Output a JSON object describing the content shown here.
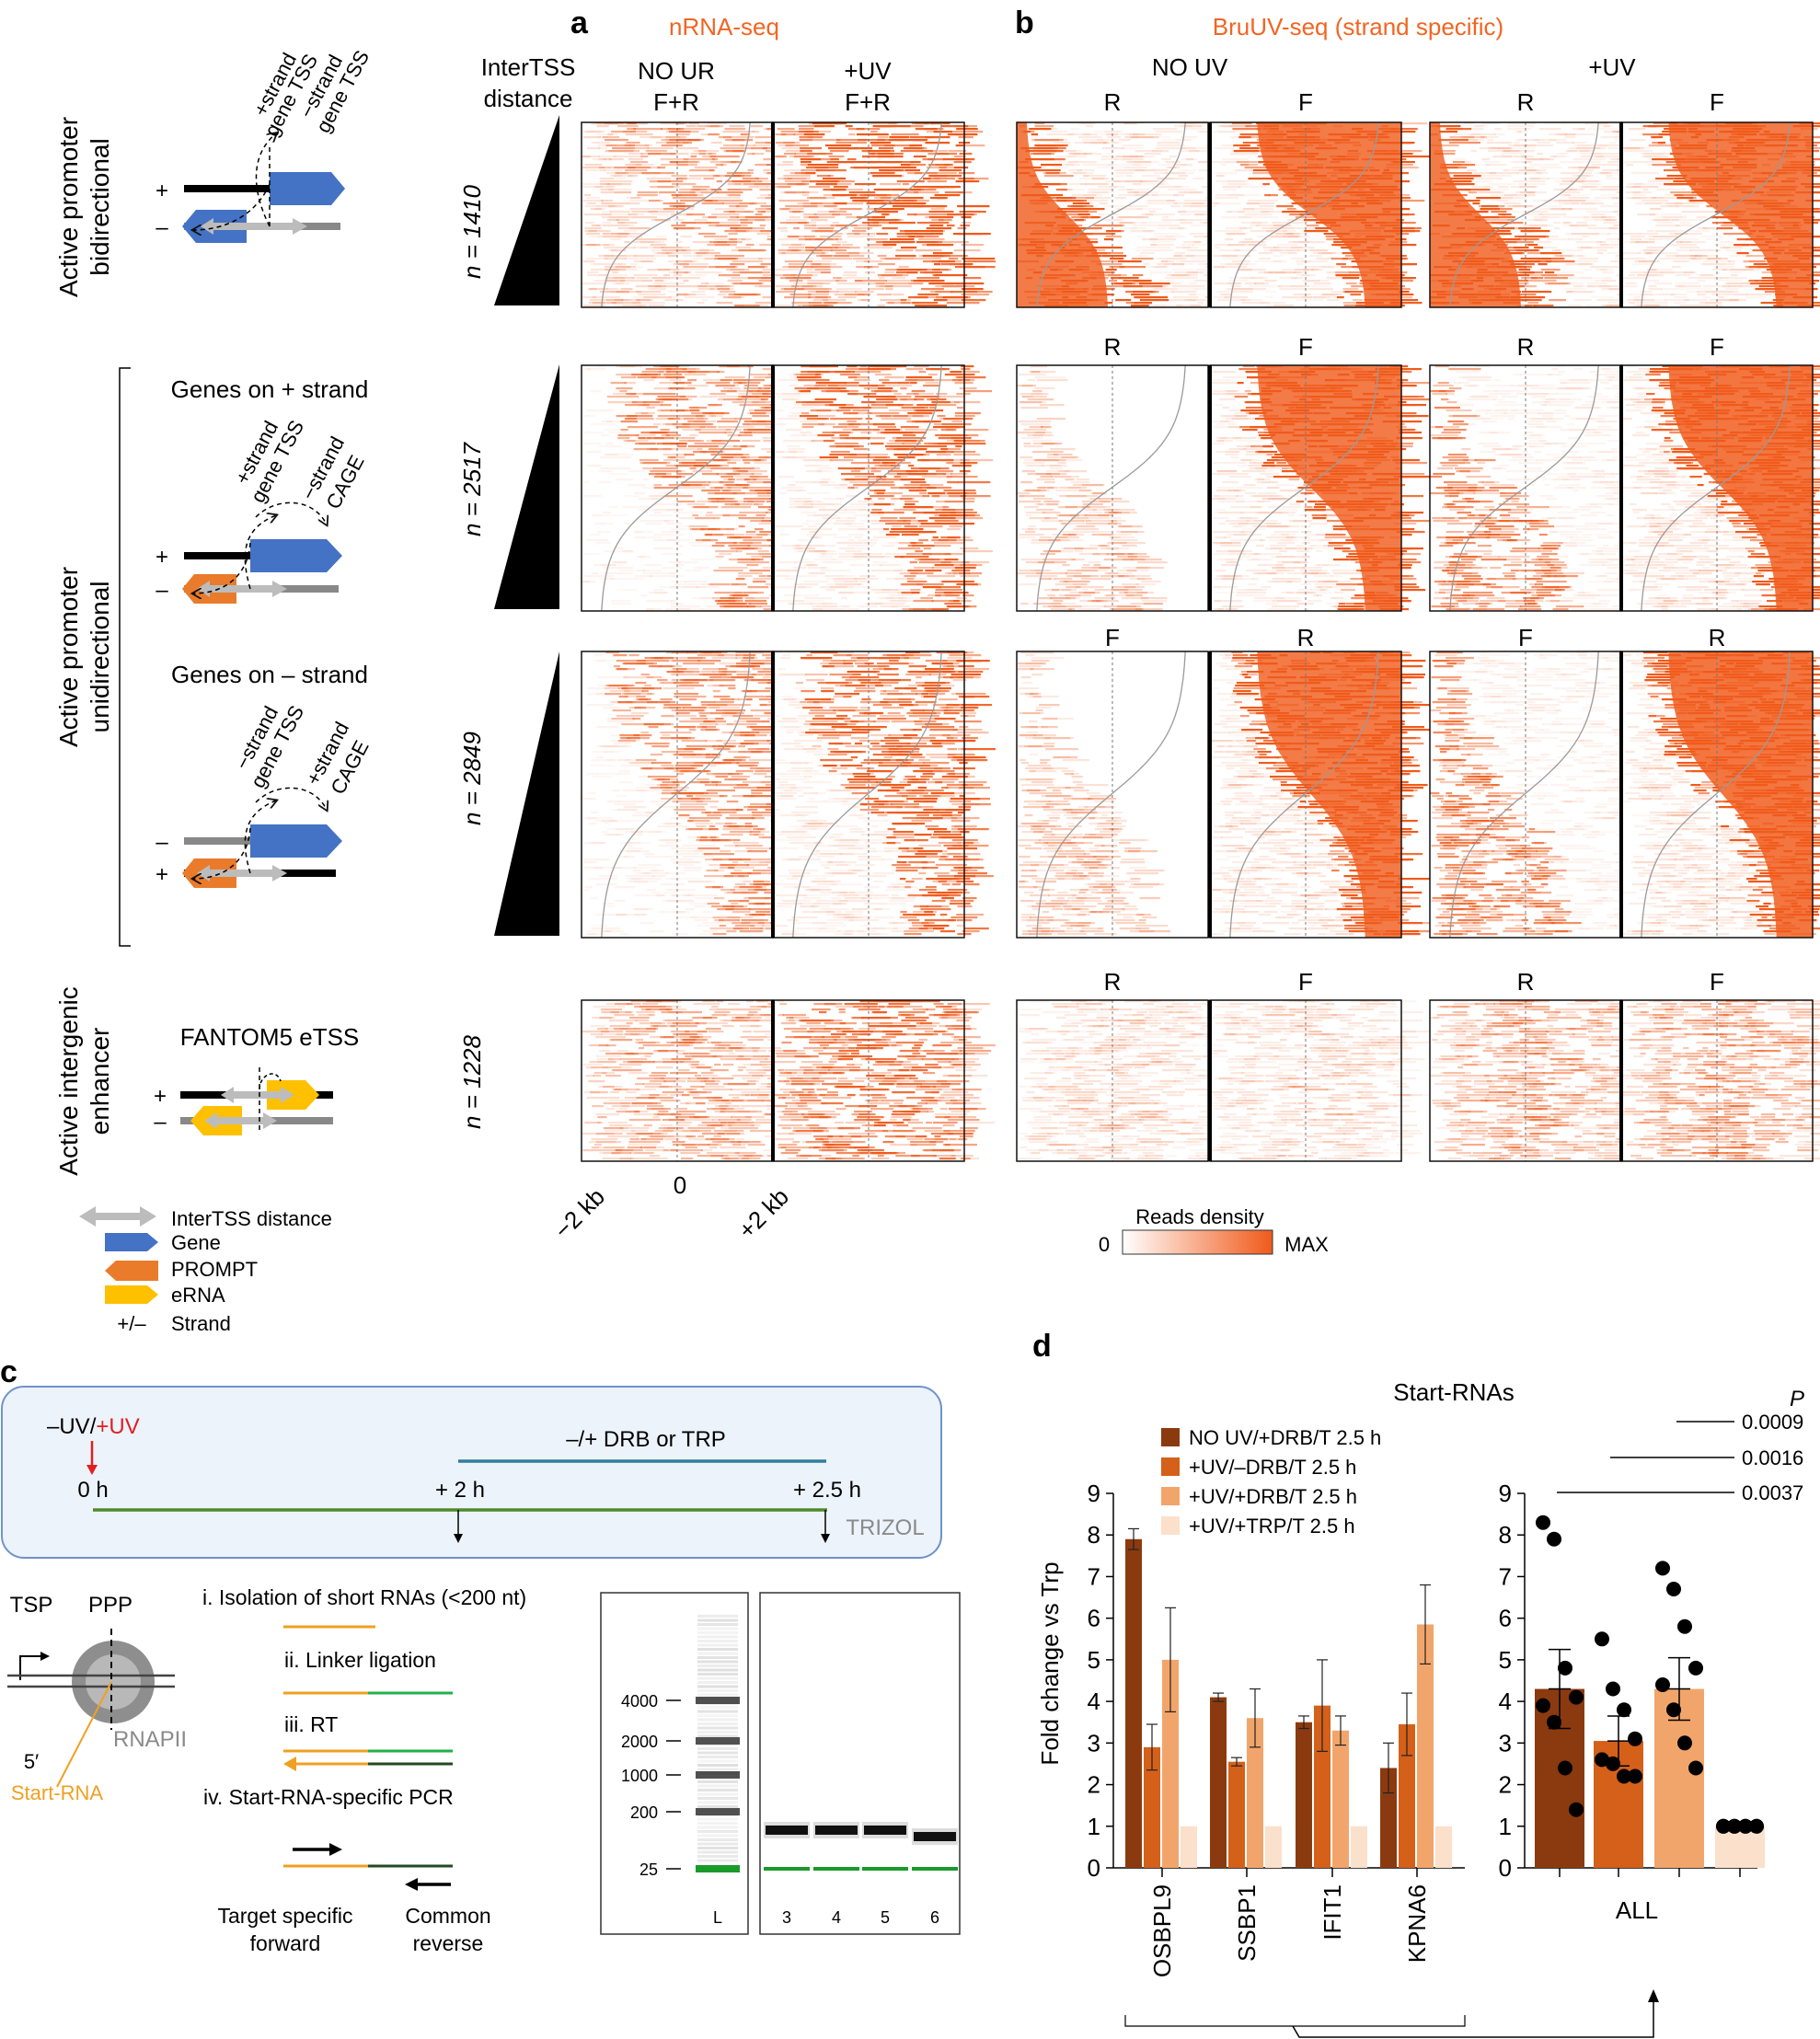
{
  "colors": {
    "accent": "#f26522",
    "heat_max": "#f05a1a",
    "gene": "#4472c4",
    "prompt": "#e97b2b",
    "erna": "#ffc000",
    "bar1": "#8b3a0f",
    "bar2": "#d4601a",
    "bar3": "#f2a56b",
    "bar4": "#fbe0cc",
    "timeline_bg": "#edf3fb",
    "timeline_border": "#6f93c9",
    "drb_line": "#2f7f9b",
    "time_line": "#4f8a2b",
    "start_rna": "#f0a020",
    "linker": "#22b04b",
    "gel_green": "#1a9a2a"
  },
  "panel_a": {
    "letter": "a",
    "title": "nRNA-seq",
    "intertss_label_1": "InterTSS",
    "intertss_label_2": "distance",
    "col1_l1": "NO UR",
    "col1_l2": "F+R",
    "col2_l1": "+UV",
    "col2_l2": "F+R",
    "x_ticks": [
      "−2 kb",
      "0",
      "+2 kb"
    ]
  },
  "panel_b": {
    "letter": "b",
    "title": "BruUV-seq (strand specific)",
    "group1": "NO UV",
    "group2": "+UV",
    "row_labels": [
      [
        "R",
        "F",
        "R",
        "F"
      ],
      [
        "R",
        "F",
        "R",
        "F"
      ],
      [
        "F",
        "R",
        "F",
        "R"
      ],
      [
        "R",
        "F",
        "R",
        "F"
      ]
    ],
    "legend_title": "Reads density",
    "legend_min": "0",
    "legend_max": "MAX"
  },
  "rows": [
    {
      "side_label_1": "Active promoter",
      "side_label_2": "bidirectional",
      "n": "n = 1410",
      "lab1": "+strand",
      "lab2": "gene TSS",
      "lab3": "−strand",
      "lab4": "gene TSS"
    },
    {
      "title": "Genes on + strand",
      "n": "n = 2517",
      "lab1": "+strand",
      "lab2": "gene TSS",
      "lab3": "−strand",
      "lab4": "CAGE"
    },
    {
      "title": "Genes on – strand",
      "n": "n = 2849",
      "lab1": "−strand",
      "lab2": "gene TSS",
      "lab3": "+strand",
      "lab4": "CAGE"
    },
    {
      "side_label_1": "Active intergenic",
      "side_label_2": "enhancer",
      "title": "FANTOM5 eTSS",
      "n": "n = 1228"
    }
  ],
  "unidirectional_label_1": "Active promoter",
  "unidirectional_label_2": "unidirectional",
  "strand_plus": "+",
  "strand_minus": "–",
  "legend": {
    "intertss": "InterTSS distance",
    "gene": "Gene",
    "prompt": "PROMPT",
    "erna": "eRNA",
    "strand_sym": "+/–",
    "strand": "Strand"
  },
  "panel_c": {
    "letter": "c",
    "uv_minus": "–UV/",
    "uv_plus": "+UV",
    "drb": "–/+ DRB or TRP",
    "t0": "0 h",
    "t2": "+ 2 h",
    "t25": "+ 2.5 h",
    "trizol": "TRIZOL",
    "tsp": "TSP",
    "ppp": "PPP",
    "rnapii": "RNAPII",
    "five_prime": "5′",
    "start_rna": "Start-RNA",
    "steps": [
      "i. Isolation of short RNAs (<200 nt)",
      "ii. Linker ligation",
      "iii. RT",
      "iv. Start-RNA-specific PCR"
    ],
    "fwd_1": "Target specific",
    "fwd_2": "forward",
    "rev_1": "Common",
    "rev_2": "reverse",
    "gel_ladder": [
      "4000",
      "2000",
      "1000",
      "200",
      "25"
    ],
    "gel_lanes": [
      "L",
      "3",
      "4",
      "5",
      "6"
    ]
  },
  "panel_d": {
    "letter": "d",
    "title": "Start-RNAs",
    "p_label": "P",
    "legend": [
      "NO UV/+DRB/T 2.5 h",
      "+UV/–DRB/T 2.5 h",
      "+UV/+DRB/T 2.5 h",
      "+UV/+TRP/T 2.5 h"
    ],
    "p_values": [
      "0.0009",
      "0.0016",
      "0.0037"
    ]
  },
  "chart_data": [
    {
      "type": "bar",
      "title": "Start-RNAs",
      "ylabel": "Fold change vs Trp",
      "ylim": [
        0,
        9
      ],
      "yticks": [
        "0",
        "1",
        "2",
        "3",
        "4",
        "5",
        "6",
        "7",
        "8",
        "9"
      ],
      "categories": [
        "OSBPL9",
        "SSBP1",
        "IFIT1",
        "KPNA6"
      ],
      "series": [
        {
          "name": "NO UV/+DRB/T 2.5 h",
          "values": [
            7.9,
            4.1,
            3.5,
            2.4
          ],
          "errors": [
            0.25,
            0.1,
            0.15,
            0.6
          ]
        },
        {
          "name": "+UV/–DRB/T 2.5 h",
          "values": [
            2.9,
            2.55,
            3.9,
            3.45
          ],
          "errors": [
            0.55,
            0.1,
            1.1,
            0.75
          ]
        },
        {
          "name": "+UV/+DRB/T 2.5 h",
          "values": [
            5.0,
            3.6,
            3.3,
            5.85
          ],
          "errors": [
            1.25,
            0.7,
            0.35,
            0.95
          ]
        },
        {
          "name": "+UV/+TRP/T 2.5 h",
          "values": [
            1.0,
            1.0,
            1.0,
            1.0
          ],
          "errors": [
            0,
            0,
            0,
            0
          ]
        }
      ]
    },
    {
      "type": "bar",
      "xlabel": "ALL",
      "ylim": [
        0,
        9
      ],
      "yticks": [
        "0",
        "1",
        "2",
        "3",
        "4",
        "5",
        "6",
        "7",
        "8",
        "9"
      ],
      "categories": [
        "NO UV/+DRB/T 2.5 h",
        "+UV/–DRB/T 2.5 h",
        "+UV/+DRB/T 2.5 h",
        "+UV/+TRP/T 2.5 h"
      ],
      "values": [
        4.3,
        3.05,
        4.3,
        1.0
      ],
      "errors": [
        0.95,
        0.6,
        0.75,
        0.0
      ],
      "points": [
        [
          8.3,
          7.9,
          4.8,
          4.1,
          3.9,
          3.5,
          2.4,
          1.4
        ],
        [
          5.5,
          4.3,
          3.8,
          3.1,
          2.6,
          2.5,
          2.2,
          2.2
        ],
        [
          7.2,
          6.7,
          5.8,
          4.8,
          4.4,
          3.8,
          3.0,
          2.4
        ],
        [
          1.0,
          1.0,
          1.0,
          1.0,
          1.0,
          1.0,
          1.0,
          1.0
        ]
      ]
    }
  ]
}
